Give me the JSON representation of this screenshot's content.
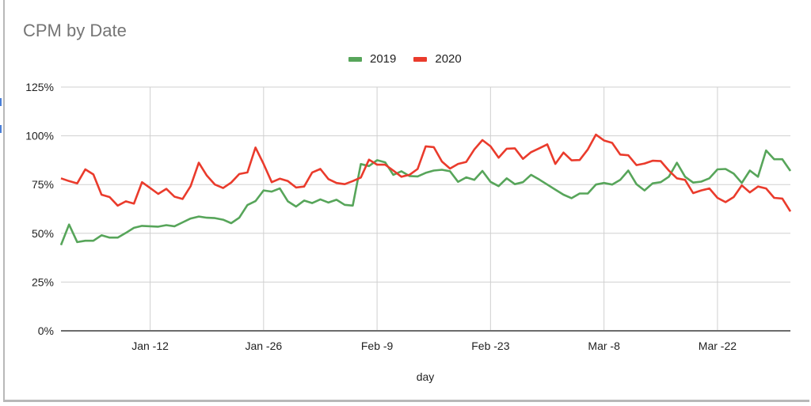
{
  "chart_data": {
    "type": "line",
    "title": "CPM by Date",
    "xlabel": "day",
    "ylabel": "",
    "ylim": [
      0,
      1.25
    ],
    "yticks": [
      "0%",
      "25%",
      "50%",
      "75%",
      "100%",
      "125%"
    ],
    "xticks": [
      "Jan -12",
      "Jan -26",
      "Feb -9",
      "Feb -23",
      "Mar -8",
      "Mar -22"
    ],
    "grid": true,
    "legend_position": "top",
    "x_range_days": [
      "Jan 1",
      "Mar 31"
    ],
    "series": [
      {
        "name": "2019",
        "color": "#57a55a",
        "values": [
          0.44,
          0.545,
          0.455,
          0.462,
          0.462,
          0.49,
          0.478,
          0.478,
          0.502,
          0.528,
          0.538,
          0.536,
          0.534,
          0.542,
          0.536,
          0.556,
          0.576,
          0.586,
          0.58,
          0.578,
          0.57,
          0.552,
          0.58,
          0.645,
          0.665,
          0.72,
          0.714,
          0.73,
          0.664,
          0.637,
          0.668,
          0.655,
          0.674,
          0.658,
          0.672,
          0.646,
          0.642,
          0.855,
          0.845,
          0.875,
          0.864,
          0.8,
          0.818,
          0.794,
          0.792,
          0.81,
          0.822,
          0.826,
          0.818,
          0.764,
          0.787,
          0.774,
          0.82,
          0.764,
          0.742,
          0.782,
          0.752,
          0.762,
          0.8,
          0.776,
          0.75,
          0.724,
          0.698,
          0.68,
          0.704,
          0.704,
          0.75,
          0.758,
          0.75,
          0.774,
          0.822,
          0.752,
          0.72,
          0.756,
          0.762,
          0.79,
          0.862,
          0.79,
          0.76,
          0.765,
          0.782,
          0.828,
          0.83,
          0.806,
          0.758,
          0.822,
          0.79,
          0.925,
          0.88,
          0.88,
          0.82
        ]
      },
      {
        "name": "2020",
        "color": "#ea3b2c",
        "values": [
          0.782,
          0.768,
          0.756,
          0.828,
          0.802,
          0.698,
          0.686,
          0.642,
          0.664,
          0.652,
          0.762,
          0.732,
          0.702,
          0.728,
          0.688,
          0.676,
          0.742,
          0.862,
          0.796,
          0.75,
          0.732,
          0.76,
          0.804,
          0.812,
          0.94,
          0.856,
          0.762,
          0.78,
          0.768,
          0.735,
          0.74,
          0.812,
          0.83,
          0.778,
          0.758,
          0.752,
          0.768,
          0.786,
          0.878,
          0.852,
          0.852,
          0.822,
          0.79,
          0.8,
          0.83,
          0.946,
          0.942,
          0.868,
          0.832,
          0.856,
          0.866,
          0.93,
          0.978,
          0.946,
          0.888,
          0.934,
          0.936,
          0.882,
          0.916,
          0.936,
          0.956,
          0.856,
          0.914,
          0.874,
          0.876,
          0.93,
          1.006,
          0.976,
          0.964,
          0.904,
          0.9,
          0.85,
          0.858,
          0.872,
          0.87,
          0.822,
          0.782,
          0.774,
          0.706,
          0.72,
          0.73,
          0.682,
          0.66,
          0.686,
          0.746,
          0.71,
          0.74,
          0.73,
          0.682,
          0.678,
          0.612
        ]
      }
    ]
  },
  "legend": [
    {
      "label": "2019",
      "color": "#57a55a"
    },
    {
      "label": "2020",
      "color": "#ea3b2c"
    }
  ]
}
